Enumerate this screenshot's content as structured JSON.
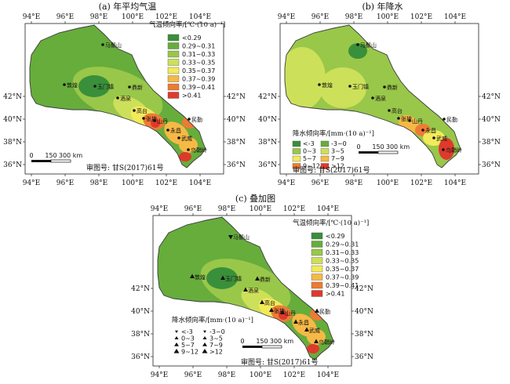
{
  "panels": [
    {
      "id": "a",
      "title": "(a) 年平均气温",
      "legend_title": "气温倾向率/[℃·(10 a)⁻¹]",
      "legend": [
        {
          "label": "<0.29",
          "color": "#3a8f3a"
        },
        {
          "label": "0.29~0.31",
          "color": "#66ad3c"
        },
        {
          "label": "0.31~0.33",
          "color": "#99c74a"
        },
        {
          "label": "0.33~0.35",
          "color": "#cde05a"
        },
        {
          "label": "0.35~0.37",
          "color": "#f2ea5a"
        },
        {
          "label": "0.37~0.39",
          "color": "#f5b946"
        },
        {
          "label": "0.39~0.41",
          "color": "#ee7b34"
        },
        {
          "label": ">0.41",
          "color": "#de3a2c"
        }
      ],
      "scale_labels": [
        "0",
        "150",
        "300 km"
      ],
      "review_no": "审图号: 甘S(2017)61号"
    },
    {
      "id": "b",
      "title": "(b) 年降水",
      "legend_title": "降水倾向率/[mm·(10 a)⁻¹]",
      "legend": [
        {
          "label": "<-3",
          "color": "#3a8f3a"
        },
        {
          "label": "-3~0",
          "color": "#66ad3c"
        },
        {
          "label": "0~3",
          "color": "#99c74a"
        },
        {
          "label": "3~5",
          "color": "#cde05a"
        },
        {
          "label": "5~7",
          "color": "#f2ea5a"
        },
        {
          "label": "7~9",
          "color": "#f5b946"
        },
        {
          "label": "9~12",
          "color": "#ee7b34"
        },
        {
          "label": ">12",
          "color": "#de3a2c"
        }
      ],
      "scale_labels": [
        "0",
        "150",
        "300 km"
      ],
      "review_no": "审图号: 甘S(2017)61号"
    },
    {
      "id": "c",
      "title": "(c) 叠加图",
      "legend_title": "气温倾向率/[℃·(10 a)⁻¹]",
      "legend": [
        {
          "label": "<0.29",
          "color": "#3a8f3a"
        },
        {
          "label": "0.29~0.31",
          "color": "#66ad3c"
        },
        {
          "label": "0.31~0.33",
          "color": "#99c74a"
        },
        {
          "label": "0.33~0.35",
          "color": "#cde05a"
        },
        {
          "label": "0.35~0.37",
          "color": "#f2ea5a"
        },
        {
          "label": "0.37~0.39",
          "color": "#f5b946"
        },
        {
          "label": "0.39~0.41",
          "color": "#ee7b34"
        },
        {
          "label": ">0.41",
          "color": "#de3a2c"
        }
      ],
      "legend2_title": "降水倾向率/[mm·(10 a)⁻¹]",
      "legend2": [
        {
          "label": "<-3",
          "marker": "down"
        },
        {
          "label": "-3~0",
          "marker": "down"
        },
        {
          "label": "0~3",
          "marker": "up"
        },
        {
          "label": "3~5",
          "marker": "up"
        },
        {
          "label": "5~7",
          "marker": "up"
        },
        {
          "label": "7~9",
          "marker": "up"
        },
        {
          "label": "9~12",
          "marker": "up"
        },
        {
          "label": ">12",
          "marker": "up"
        }
      ],
      "scale_labels": [
        "0",
        "150",
        "300 km"
      ],
      "review_no": "审图号: 甘S(2017)61号"
    }
  ],
  "x_ticks": [
    "94°E",
    "96°E",
    "98°E",
    "100°E",
    "102°E",
    "104°E"
  ],
  "y_ticks": [
    "42°N",
    "40°N",
    "38°N",
    "36°N"
  ],
  "stations": [
    {
      "name": "马鬃山"
    },
    {
      "name": "敦煌"
    },
    {
      "name": "玉门镇"
    },
    {
      "name": "鼎新"
    },
    {
      "name": "酒泉"
    },
    {
      "name": "高台"
    },
    {
      "name": "张掖"
    },
    {
      "name": "山丹"
    },
    {
      "name": "民勤"
    },
    {
      "name": "永昌"
    },
    {
      "name": "武威"
    },
    {
      "name": "乌鞘岭"
    }
  ]
}
